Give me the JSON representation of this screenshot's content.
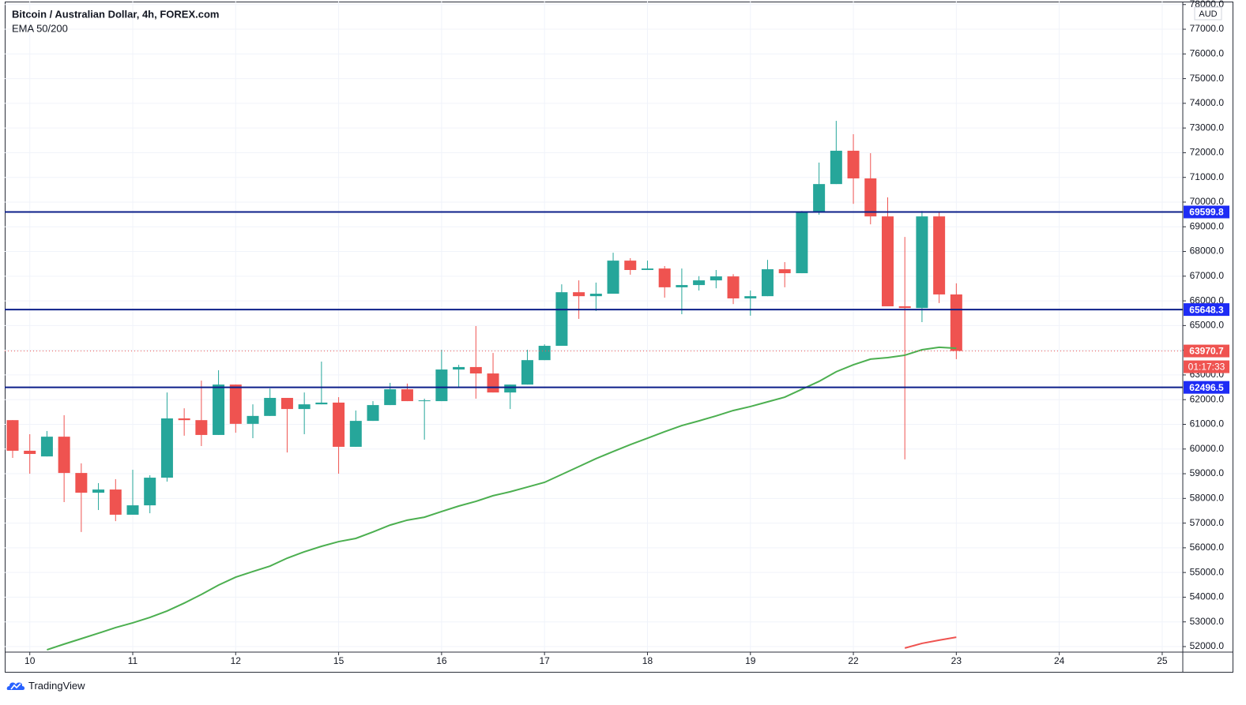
{
  "chart_data": {
    "type": "candlestick",
    "title": "Bitcoin / Australian Dollar, 4h, FOREX.com",
    "indicator": "EMA 50/200",
    "currency": "AUD",
    "up_color": "#26a69a",
    "down_color": "#ef5350",
    "open": [
      61170,
      59930,
      59700,
      60500,
      59030,
      58230,
      58360,
      57340,
      57720,
      58840,
      61240,
      61170,
      60570,
      62610,
      61020,
      61340,
      62070,
      61620,
      61810,
      61880,
      60090,
      61140,
      61780,
      62420,
      61940,
      61940,
      63220,
      63320,
      63060,
      62290,
      62610,
      63600,
      64180,
      66350,
      66190,
      66290,
      67630,
      67250,
      67310,
      66550,
      66640,
      66830,
      66990,
      66100,
      66190,
      67280,
      67120,
      69610,
      70730,
      72080,
      70960,
      69420,
      65780,
      65710,
      69420,
      66260
    ],
    "high": [
      61170,
      60600,
      60730,
      61370,
      59420,
      58620,
      58780,
      59160,
      58940,
      62290,
      61650,
      62770,
      63190,
      62610,
      61810,
      62450,
      62070,
      62290,
      63540,
      62100,
      61560,
      61940,
      62680,
      62650,
      62040,
      64020,
      63410,
      64980,
      63890,
      62610,
      64020,
      64240,
      66670,
      66830,
      66740,
      67950,
      67730,
      67630,
      67410,
      67310,
      67000,
      67250,
      67080,
      66420,
      67660,
      67570,
      69640,
      71600,
      73290,
      72750,
      71980,
      70190,
      68590,
      69640,
      69580,
      66710
    ],
    "low": [
      59640,
      59000,
      59700,
      57850,
      56640,
      57530,
      57080,
      57340,
      57400,
      58680,
      60540,
      60120,
      60570,
      60660,
      60440,
      61340,
      59860,
      60600,
      61810,
      59000,
      60090,
      61140,
      61780,
      61940,
      60380,
      61940,
      62520,
      62040,
      62290,
      61620,
      62610,
      63600,
      64180,
      65270,
      65590,
      66290,
      67060,
      67250,
      66130,
      65460,
      66420,
      66510,
      65870,
      65400,
      66190,
      66550,
      67120,
      69490,
      70730,
      69930,
      69100,
      65780,
      59580,
      65140,
      65910,
      63640
    ],
    "close": [
      59930,
      59800,
      60500,
      59030,
      58230,
      58360,
      57340,
      57720,
      58840,
      61240,
      61170,
      60570,
      62610,
      61020,
      61340,
      62070,
      61620,
      61810,
      61880,
      60090,
      61140,
      61780,
      62420,
      61940,
      61970,
      63220,
      63320,
      63060,
      62290,
      62610,
      63600,
      64180,
      66350,
      66190,
      66290,
      67630,
      67250,
      67310,
      66550,
      66640,
      66830,
      66990,
      66100,
      66190,
      67280,
      67120,
      69610,
      70730,
      72080,
      70960,
      69420,
      65780,
      65710,
      69420,
      66260,
      63970.7
    ],
    "lines": [
      {
        "color": "#4caf50",
        "values": [
          null,
          null,
          51870,
          52100,
          52320,
          52540,
          52770,
          52960,
          53180,
          53440,
          53760,
          54110,
          54490,
          54810,
          55040,
          55260,
          55580,
          55840,
          56060,
          56250,
          56380,
          56640,
          56920,
          57120,
          57240,
          57470,
          57690,
          57880,
          58110,
          58270,
          58460,
          58650,
          58970,
          59290,
          59610,
          59900,
          60180,
          60440,
          60700,
          60950,
          61140,
          61340,
          61560,
          61720,
          61910,
          62100,
          62420,
          62740,
          63130,
          63410,
          63640,
          63700,
          63800,
          64020,
          64120,
          64080
        ]
      },
      {
        "color": "#ef5350",
        "values": [
          null,
          null,
          null,
          null,
          null,
          null,
          null,
          null,
          null,
          null,
          null,
          null,
          null,
          null,
          null,
          null,
          null,
          null,
          null,
          null,
          null,
          null,
          null,
          null,
          null,
          null,
          null,
          null,
          null,
          null,
          null,
          null,
          null,
          null,
          null,
          null,
          null,
          null,
          null,
          null,
          null,
          null,
          null,
          null,
          null,
          null,
          null,
          null,
          null,
          null,
          null,
          null,
          51940,
          52130,
          52260,
          52380
        ]
      }
    ],
    "levels": [
      69599.8,
      65648.3,
      62496.5
    ],
    "level_color": "#0c1f8a",
    "level_label_color": "#1e2cf5",
    "last_price": 63970.7,
    "countdown": "01:17:33",
    "xlim": [
      -0.46,
      68.2
    ],
    "xticks": [
      {
        "value": 1,
        "label": "10"
      },
      {
        "value": 7,
        "label": "11"
      },
      {
        "value": 13,
        "label": "12"
      },
      {
        "value": 19,
        "label": "15"
      },
      {
        "value": 25,
        "label": "16"
      },
      {
        "value": 31,
        "label": "17"
      },
      {
        "value": 37,
        "label": "18"
      },
      {
        "value": 43,
        "label": "19"
      },
      {
        "value": 49,
        "label": "22"
      },
      {
        "value": 55,
        "label": "23"
      },
      {
        "value": 61,
        "label": "24"
      },
      {
        "value": 67,
        "label": "25"
      }
    ],
    "ylim": [
      51776,
      78120
    ],
    "yticks": [
      {
        "value": 52000,
        "label": "52000.0"
      },
      {
        "value": 53000,
        "label": "53000.0"
      },
      {
        "value": 54000,
        "label": "54000.0"
      },
      {
        "value": 55000,
        "label": "55000.0"
      },
      {
        "value": 56000,
        "label": "56000.0"
      },
      {
        "value": 57000,
        "label": "57000.0"
      },
      {
        "value": 58000,
        "label": "58000.0"
      },
      {
        "value": 59000,
        "label": "59000.0"
      },
      {
        "value": 60000,
        "label": "60000.0"
      },
      {
        "value": 61000,
        "label": "61000.0"
      },
      {
        "value": 62000,
        "label": "62000.0"
      },
      {
        "value": 63000,
        "label": "63000.0"
      },
      {
        "value": 64000,
        "label": "64000.0"
      },
      {
        "value": 65000,
        "label": "65000.0"
      },
      {
        "value": 66000,
        "label": "66000.0"
      },
      {
        "value": 67000,
        "label": "67000.0"
      },
      {
        "value": 68000,
        "label": "68000.0"
      },
      {
        "value": 69000,
        "label": "69000.0"
      },
      {
        "value": 70000,
        "label": "70000.0"
      },
      {
        "value": 71000,
        "label": "71000.0"
      },
      {
        "value": 72000,
        "label": "72000.0"
      },
      {
        "value": 73000,
        "label": "73000.0"
      },
      {
        "value": 74000,
        "label": "74000.0"
      },
      {
        "value": 75000,
        "label": "75000.0"
      },
      {
        "value": 76000,
        "label": "76000.0"
      },
      {
        "value": 77000,
        "label": "77000.0"
      },
      {
        "value": 78000,
        "label": "78000.0"
      }
    ],
    "grid": true
  },
  "footer": {
    "brand": "TradingView"
  }
}
